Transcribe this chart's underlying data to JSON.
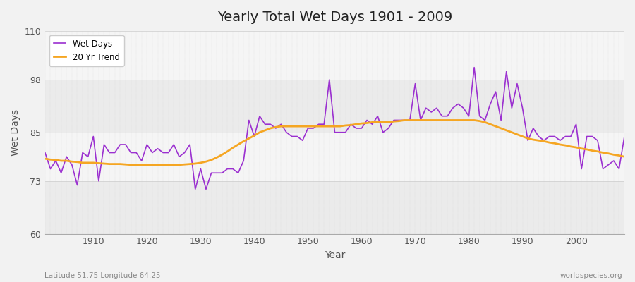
{
  "title": "Yearly Total Wet Days 1901 - 2009",
  "xlabel": "Year",
  "ylabel": "Wet Days",
  "footnote_left": "Latitude 51.75 Longitude 64.25",
  "footnote_right": "worldspecies.org",
  "ylim": [
    60,
    110
  ],
  "xlim": [
    1901,
    2009
  ],
  "yticks": [
    60,
    73,
    85,
    98,
    110
  ],
  "xticks": [
    1910,
    1920,
    1930,
    1940,
    1950,
    1960,
    1970,
    1980,
    1990,
    2000
  ],
  "bg_color": "#f0f0f0",
  "plot_bg_color": "#f5f5f5",
  "band_color1": "#f0f0f0",
  "band_color2": "#e8e8e8",
  "grid_color": "#cccccc",
  "wet_days_color": "#9b30d0",
  "trend_color": "#f5a623",
  "legend_wet": "Wet Days",
  "legend_trend": "20 Yr Trend",
  "years": [
    1901,
    1902,
    1903,
    1904,
    1905,
    1906,
    1907,
    1908,
    1909,
    1910,
    1911,
    1912,
    1913,
    1914,
    1915,
    1916,
    1917,
    1918,
    1919,
    1920,
    1921,
    1922,
    1923,
    1924,
    1925,
    1926,
    1927,
    1928,
    1929,
    1930,
    1931,
    1932,
    1933,
    1934,
    1935,
    1936,
    1937,
    1938,
    1939,
    1940,
    1941,
    1942,
    1943,
    1944,
    1945,
    1946,
    1947,
    1948,
    1949,
    1950,
    1951,
    1952,
    1953,
    1954,
    1955,
    1956,
    1957,
    1958,
    1959,
    1960,
    1961,
    1962,
    1963,
    1964,
    1965,
    1966,
    1967,
    1968,
    1969,
    1970,
    1971,
    1972,
    1973,
    1974,
    1975,
    1976,
    1977,
    1978,
    1979,
    1980,
    1981,
    1982,
    1983,
    1984,
    1985,
    1986,
    1987,
    1988,
    1989,
    1990,
    1991,
    1992,
    1993,
    1994,
    1995,
    1996,
    1997,
    1998,
    1999,
    2000,
    2001,
    2002,
    2003,
    2004,
    2005,
    2006,
    2007,
    2008,
    2009
  ],
  "wet_days": [
    80,
    76,
    78,
    75,
    79,
    77,
    72,
    80,
    79,
    84,
    73,
    82,
    80,
    80,
    82,
    82,
    80,
    80,
    78,
    82,
    80,
    81,
    80,
    80,
    82,
    79,
    80,
    82,
    71,
    76,
    71,
    75,
    75,
    75,
    76,
    76,
    75,
    78,
    88,
    84,
    89,
    87,
    87,
    86,
    87,
    85,
    84,
    84,
    83,
    86,
    86,
    87,
    87,
    98,
    85,
    85,
    85,
    87,
    86,
    86,
    88,
    87,
    89,
    85,
    86,
    88,
    88,
    88,
    88,
    97,
    88,
    91,
    90,
    91,
    89,
    89,
    91,
    92,
    91,
    89,
    101,
    89,
    88,
    92,
    95,
    88,
    100,
    91,
    97,
    91,
    83,
    86,
    84,
    83,
    84,
    84,
    83,
    84,
    84,
    87,
    76,
    84,
    84,
    83,
    76,
    77,
    78,
    76,
    84
  ],
  "trend": [
    78.5,
    78.3,
    78.2,
    78.0,
    78.0,
    77.8,
    77.7,
    77.5,
    77.5,
    77.5,
    77.4,
    77.3,
    77.2,
    77.2,
    77.2,
    77.1,
    77.0,
    77.0,
    77.0,
    77.0,
    77.0,
    77.0,
    77.0,
    77.0,
    77.0,
    77.0,
    77.1,
    77.2,
    77.3,
    77.5,
    77.8,
    78.2,
    78.8,
    79.5,
    80.3,
    81.2,
    82.0,
    82.8,
    83.5,
    84.2,
    85.0,
    85.5,
    86.0,
    86.3,
    86.5,
    86.5,
    86.5,
    86.5,
    86.5,
    86.5,
    86.5,
    86.5,
    86.5,
    86.5,
    86.5,
    86.5,
    86.7,
    86.8,
    87.0,
    87.2,
    87.3,
    87.5,
    87.5,
    87.5,
    87.5,
    87.7,
    87.8,
    88.0,
    88.0,
    88.0,
    88.0,
    88.0,
    88.0,
    88.0,
    88.0,
    88.0,
    88.0,
    88.0,
    88.0,
    88.0,
    88.0,
    87.8,
    87.5,
    87.0,
    86.5,
    86.0,
    85.5,
    85.0,
    84.5,
    84.0,
    83.5,
    83.2,
    83.0,
    82.8,
    82.5,
    82.3,
    82.0,
    81.8,
    81.5,
    81.3,
    81.0,
    80.8,
    80.5,
    80.3,
    80.0,
    79.8,
    79.5,
    79.3,
    79.0
  ]
}
